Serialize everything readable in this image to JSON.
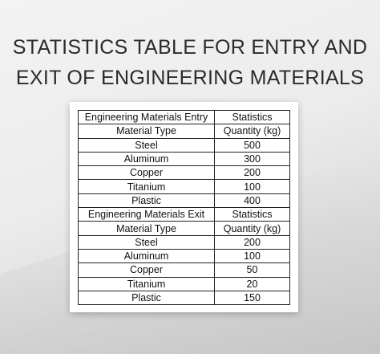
{
  "title": {
    "line1": "STATISTICS TABLE FOR ENTRY AND",
    "line2": "EXIT OF ENGINEERING MATERIALS"
  },
  "table": {
    "rows": [
      [
        "Engineering Materials Entry",
        "Statistics"
      ],
      [
        "Material Type",
        "Quantity (kg)"
      ],
      [
        "Steel",
        "500"
      ],
      [
        "Aluminum",
        "300"
      ],
      [
        "Copper",
        "200"
      ],
      [
        "Titanium",
        "100"
      ],
      [
        "Plastic",
        "400"
      ],
      [
        "Engineering Materials Exit",
        "Statistics"
      ],
      [
        "Material Type",
        "Quantity (kg)"
      ],
      [
        "Steel",
        "200"
      ],
      [
        "Aluminum",
        "100"
      ],
      [
        "Copper",
        "50"
      ],
      [
        "Titanium",
        "20"
      ],
      [
        "Plastic",
        "150"
      ]
    ]
  }
}
